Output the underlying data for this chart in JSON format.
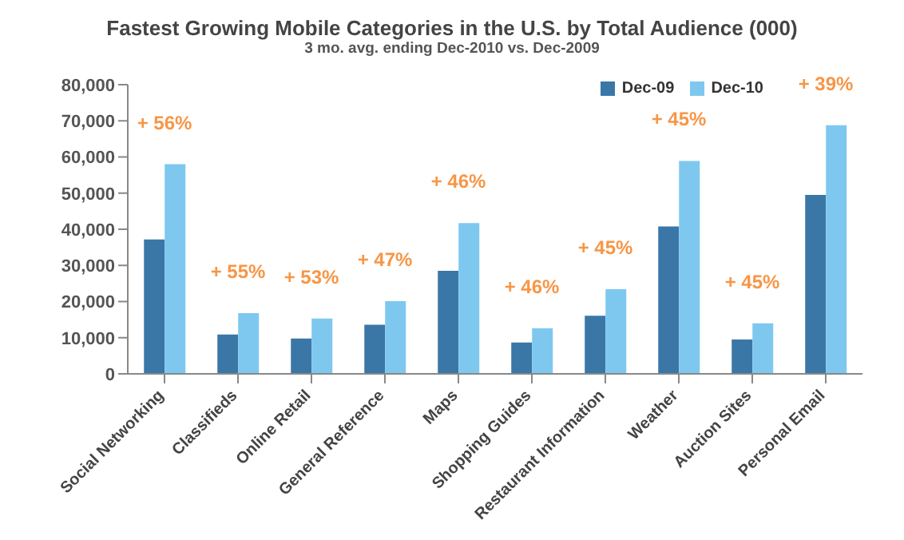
{
  "chart_data": {
    "type": "bar",
    "title": "Fastest Growing Mobile Categories in the U.S. by Total Audience (000)",
    "subtitle": "3 mo. avg. ending Dec-2010 vs. Dec-2009",
    "categories": [
      "Social Networking",
      "Classifieds",
      "Online Retail",
      "General Reference",
      "Maps",
      "Shopping Guides",
      "Restaurant Information",
      "Weather",
      "Auction Sites",
      "Personal Email"
    ],
    "series": [
      {
        "name": "Dec-09",
        "color": "#3a77a7",
        "values": [
          37200,
          10900,
          9800,
          13600,
          28500,
          8700,
          16100,
          40800,
          9500,
          49500
        ]
      },
      {
        "name": "Dec-10",
        "color": "#7ec8ef",
        "values": [
          58000,
          16800,
          15300,
          20100,
          41700,
          12600,
          23400,
          58900,
          14000,
          68800
        ]
      }
    ],
    "ylim": [
      0,
      80000
    ],
    "yticks": [
      {
        "value": 0,
        "label": "0"
      },
      {
        "value": 10000,
        "label": "10,000"
      },
      {
        "value": 20000,
        "label": "20,000"
      },
      {
        "value": 30000,
        "label": "30,000"
      },
      {
        "value": 40000,
        "label": "40,000"
      },
      {
        "value": 50000,
        "label": "50,000"
      },
      {
        "value": 60000,
        "label": "60,000"
      },
      {
        "value": 70000,
        "label": "70,000"
      },
      {
        "value": 80000,
        "label": "80,000"
      }
    ],
    "grid": false,
    "legend": "top right",
    "annotations": [
      "+ 56%",
      "+ 55%",
      "+ 53%",
      "+ 47%",
      "+ 46%",
      "+ 46%",
      "+ 45%",
      "+ 45%",
      "+ 45%",
      "+ 39%"
    ]
  }
}
